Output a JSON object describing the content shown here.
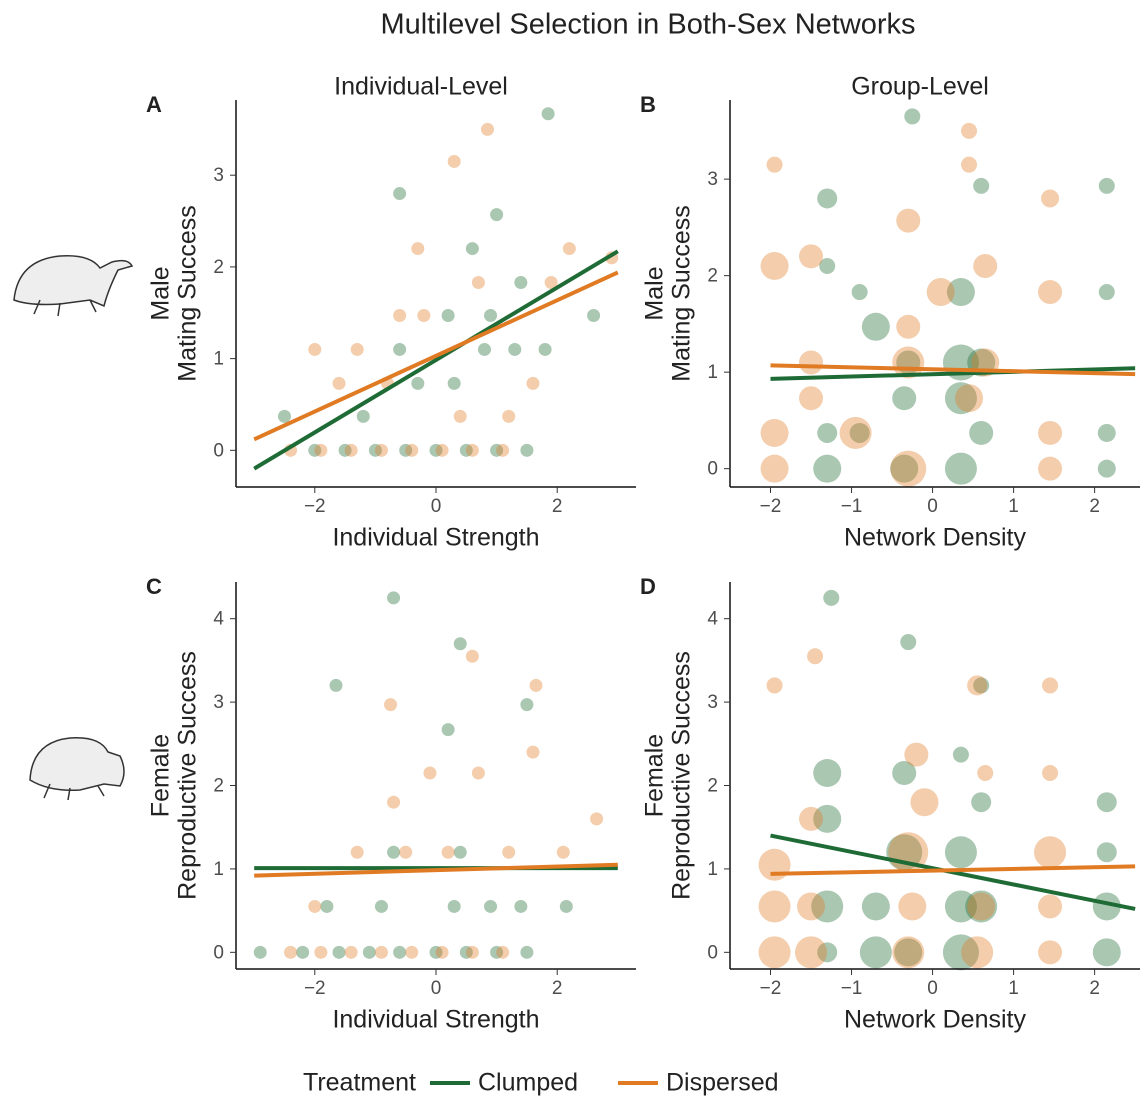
{
  "figure": {
    "title": "Multilevel Selection in Both-Sex Networks",
    "legend_title": "Treatment"
  },
  "chart_data": [
    {
      "type": "scatter",
      "panel_label": "A",
      "title": "Individual-Level",
      "xlabel": "Individual Strength",
      "ylabel": [
        "Male",
        "Mating Success"
      ],
      "xlim": [
        -3.3,
        3.3
      ],
      "ylim": [
        -0.4,
        3.82
      ],
      "xticks": [
        {
          "value": -2,
          "label": "−2"
        },
        0,
        2
      ],
      "yticks": [
        0,
        1,
        2,
        3
      ],
      "series": [
        {
          "name": "Clumped",
          "color": "#1f6b35",
          "x": [
            -2.5,
            -2,
            -1.5,
            -1,
            -0.5,
            0,
            0.5,
            1,
            1.5,
            -1.2,
            -0.3,
            0.3,
            0.8,
            1.3,
            1.8,
            -0.6,
            0.2,
            0.9,
            1.4,
            0.6,
            1.0,
            1.85,
            -0.6,
            2.6
          ],
          "y": [
            0.37,
            0,
            0,
            0,
            0,
            0,
            0,
            0,
            0,
            0.37,
            0.73,
            0.73,
            1.1,
            1.1,
            1.1,
            1.1,
            1.47,
            1.47,
            1.83,
            2.2,
            2.57,
            3.67,
            2.8,
            1.47
          ],
          "fit_x": [
            -3,
            3
          ],
          "fit_y": [
            -0.2,
            2.17
          ]
        },
        {
          "name": "Dispersed",
          "color": "#e07b24",
          "x": [
            -2.4,
            -1.9,
            -1.4,
            -0.9,
            -0.4,
            0.1,
            0.6,
            1.1,
            -2,
            -1.6,
            -0.8,
            0.4,
            1.2,
            1.6,
            -1.3,
            -0.2,
            0.7,
            1.9,
            2.2,
            -0.3,
            0.85,
            0.3,
            2.9,
            -0.6
          ],
          "y": [
            0,
            0,
            0,
            0,
            0,
            0,
            0,
            0,
            1.1,
            0.73,
            0.73,
            0.37,
            0.37,
            0.73,
            1.1,
            1.47,
            1.83,
            1.83,
            2.2,
            2.2,
            3.5,
            3.15,
            2.1,
            1.47
          ],
          "fit_x": [
            -3,
            3
          ],
          "fit_y": [
            0.12,
            1.94
          ]
        }
      ]
    },
    {
      "type": "bubble",
      "panel_label": "B",
      "title": "Group-Level",
      "xlabel": "Network Density",
      "ylabel": [
        "Male",
        "Mating Success"
      ],
      "xlim": [
        -2.5,
        2.56
      ],
      "ylim": [
        -0.19,
        3.82
      ],
      "xticks": [
        {
          "value": -2,
          "label": "−2"
        },
        {
          "value": -1,
          "label": "−1"
        },
        0,
        1,
        2
      ],
      "yticks": [
        0,
        1,
        2,
        3
      ],
      "series": [
        {
          "name": "Clumped",
          "color": "#1f6b35",
          "x": [
            -1.3,
            -1.3,
            -1.3,
            -0.9,
            -0.9,
            -0.7,
            -0.35,
            -0.35,
            -0.25,
            0.35,
            0.35,
            0.35,
            0.6,
            0.6,
            0.6,
            2.15,
            2.15,
            2.15,
            2.15,
            -0.3,
            0.35,
            -1.3
          ],
          "y": [
            0,
            0.37,
            2.8,
            0.37,
            1.83,
            1.47,
            0,
            0.73,
            3.65,
            0,
            0.73,
            1.83,
            0.37,
            1.1,
            2.93,
            0,
            0.37,
            1.83,
            2.93,
            1.1,
            1.1,
            2.1
          ],
          "sizes": [
            14,
            10,
            10,
            10,
            8,
            14,
            14,
            12,
            8,
            16,
            16,
            14,
            12,
            14,
            8,
            9,
            9,
            8,
            8,
            12,
            18,
            8
          ],
          "fit_x": [
            -2,
            2.5
          ],
          "fit_y": [
            0.93,
            1.04
          ]
        },
        {
          "name": "Dispersed",
          "color": "#e07b24",
          "x": [
            -1.95,
            -1.95,
            -1.95,
            -1.95,
            -1.5,
            -1.5,
            -1.5,
            -0.3,
            -0.3,
            -0.3,
            0.1,
            0.45,
            0.65,
            0.65,
            1.45,
            1.45,
            1.45,
            1.45,
            0.45,
            -0.3,
            -0.95,
            0.45
          ],
          "y": [
            0,
            0.37,
            2.1,
            3.15,
            0.73,
            1.1,
            2.2,
            0,
            1.1,
            2.57,
            1.83,
            0.73,
            1.1,
            2.1,
            0,
            0.37,
            1.83,
            2.8,
            3.5,
            1.47,
            0.37,
            3.15
          ],
          "sizes": [
            14,
            14,
            14,
            8,
            12,
            12,
            12,
            18,
            16,
            12,
            14,
            14,
            14,
            12,
            12,
            12,
            12,
            9,
            8,
            12,
            16,
            8
          ],
          "fit_x": [
            -2,
            2.5
          ],
          "fit_y": [
            1.07,
            0.98
          ]
        }
      ]
    },
    {
      "type": "scatter",
      "panel_label": "C",
      "xlabel": "Individual Strength",
      "ylabel": [
        "Female",
        "Reproductive Success"
      ],
      "xlim": [
        -3.3,
        3.3
      ],
      "ylim": [
        -0.2,
        4.44
      ],
      "xticks": [
        {
          "value": -2,
          "label": "−2"
        },
        0,
        2
      ],
      "yticks": [
        0,
        1,
        2,
        3,
        4
      ],
      "series": [
        {
          "name": "Clumped",
          "color": "#1f6b35",
          "x": [
            -2.9,
            -2.2,
            -1.6,
            -1.1,
            -0.6,
            0,
            0.5,
            1,
            1.5,
            -1.8,
            -0.9,
            0.3,
            0.9,
            1.4,
            -0.7,
            0.4,
            -1.65,
            0.4,
            2.15,
            -0.7,
            1.5,
            0.2
          ],
          "y": [
            0,
            0,
            0,
            0,
            0,
            0,
            0,
            0,
            0,
            0.55,
            0.55,
            0.55,
            0.55,
            0.55,
            1.2,
            1.2,
            3.2,
            3.7,
            0.55,
            4.25,
            2.97,
            2.67
          ],
          "fit_x": [
            -3,
            3
          ],
          "fit_y": [
            1.01,
            1.01
          ]
        },
        {
          "name": "Dispersed",
          "color": "#e07b24",
          "x": [
            -2.4,
            -1.9,
            -1.4,
            -0.9,
            -0.4,
            0.1,
            0.6,
            1.1,
            -2,
            -1.3,
            -0.5,
            0.2,
            1.2,
            2.1,
            -0.7,
            -0.1,
            0.7,
            1.6,
            -0.75,
            0.6,
            1.65,
            2.65
          ],
          "y": [
            0,
            0,
            0,
            0,
            0,
            0,
            0,
            0,
            0.55,
            1.2,
            1.2,
            1.2,
            1.2,
            1.2,
            1.8,
            2.15,
            2.15,
            2.4,
            2.97,
            3.55,
            3.2,
            1.6
          ],
          "fit_x": [
            -3,
            3
          ],
          "fit_y": [
            0.92,
            1.05
          ]
        }
      ]
    },
    {
      "type": "bubble",
      "panel_label": "D",
      "xlabel": "Network Density",
      "ylabel": [
        "Female",
        "Reproductive Success"
      ],
      "xlim": [
        -2.5,
        2.56
      ],
      "ylim": [
        -0.2,
        4.44
      ],
      "xticks": [
        {
          "value": -2,
          "label": "−2"
        },
        {
          "value": -1,
          "label": "−1"
        },
        0,
        1,
        2
      ],
      "yticks": [
        0,
        1,
        2,
        3,
        4
      ],
      "series": [
        {
          "name": "Clumped",
          "color": "#1f6b35",
          "x": [
            -1.3,
            -1.3,
            -1.3,
            -1.3,
            -0.7,
            -0.7,
            -0.35,
            -0.35,
            -0.3,
            0.35,
            0.35,
            0.35,
            0.6,
            0.6,
            2.15,
            2.15,
            2.15,
            2.15,
            -1.25,
            -0.3,
            0.6,
            0.35
          ],
          "y": [
            0,
            0.55,
            1.6,
            2.15,
            0,
            0.55,
            1.2,
            2.15,
            3.72,
            0,
            0.55,
            1.2,
            0.55,
            3.2,
            0,
            0.55,
            1.2,
            1.8,
            4.25,
            0,
            1.8,
            2.37
          ],
          "sizes": [
            10,
            16,
            14,
            14,
            16,
            14,
            18,
            12,
            8,
            18,
            16,
            16,
            16,
            8,
            14,
            14,
            10,
            10,
            8,
            14,
            10,
            8
          ],
          "fit_x": [
            -2,
            2.5
          ],
          "fit_y": [
            1.4,
            0.52
          ]
        },
        {
          "name": "Dispersed",
          "color": "#e07b24",
          "x": [
            -1.95,
            -1.95,
            -1.95,
            -1.95,
            -1.5,
            -1.5,
            -1.5,
            -1.45,
            -0.3,
            -0.3,
            -0.2,
            0.55,
            0.6,
            0.65,
            1.45,
            1.45,
            1.45,
            1.45,
            1.45,
            0.55,
            -0.1,
            -0.25
          ],
          "y": [
            0,
            0.55,
            1.05,
            3.2,
            0,
            0.55,
            1.6,
            3.55,
            0,
            1.2,
            2.37,
            0,
            0.55,
            2.15,
            0,
            0.55,
            1.2,
            2.15,
            3.2,
            3.2,
            1.8,
            0.55
          ],
          "sizes": [
            16,
            16,
            16,
            8,
            16,
            14,
            12,
            8,
            16,
            20,
            12,
            16,
            14,
            8,
            12,
            12,
            16,
            8,
            8,
            10,
            14,
            14
          ],
          "fit_x": [
            -2,
            2.5
          ],
          "fit_y": [
            0.94,
            1.03
          ]
        }
      ]
    }
  ]
}
